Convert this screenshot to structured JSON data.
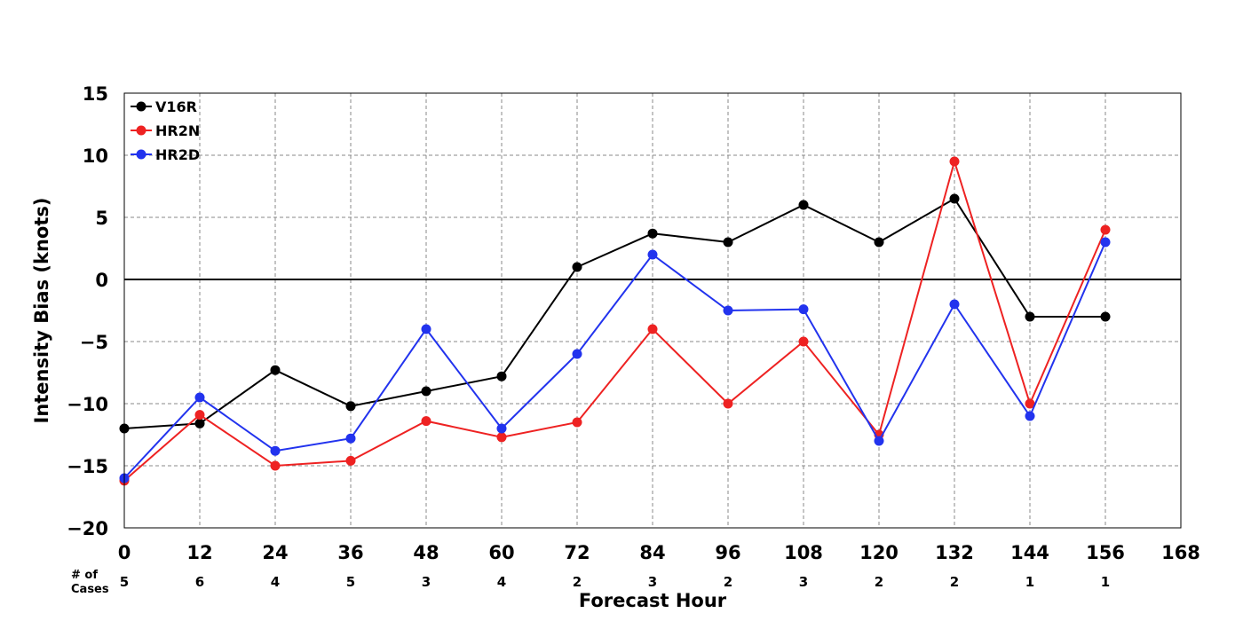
{
  "chart_data": {
    "type": "line",
    "title": "",
    "xlabel": "Forecast Hour",
    "ylabel": "Intensity Bias (knots)",
    "xlim": [
      0,
      168
    ],
    "ylim": [
      -20,
      15
    ],
    "x_ticks": [
      0,
      12,
      24,
      36,
      48,
      60,
      72,
      84,
      96,
      108,
      120,
      132,
      144,
      156,
      168
    ],
    "x_tick_labels": [
      "0",
      "12",
      "24",
      "36",
      "48",
      "60",
      "72",
      "84",
      "96",
      "108",
      "120",
      "132",
      "144",
      "156",
      "168"
    ],
    "y_ticks": [
      15,
      10,
      5,
      0,
      -5,
      -10,
      -15,
      -20
    ],
    "y_tick_labels": [
      "15",
      "10",
      "5",
      "0",
      "−5",
      "−10",
      "−15",
      "−20"
    ],
    "grid": true,
    "zero_line": true,
    "legend_position": "top-left",
    "x": [
      0,
      12,
      24,
      36,
      48,
      60,
      72,
      84,
      96,
      108,
      120,
      132,
      144,
      156
    ],
    "series": [
      {
        "name": "V16R",
        "color": "#000000",
        "values": [
          -12,
          -11.6,
          -7.3,
          -10.2,
          -9,
          -7.8,
          1,
          3.7,
          3,
          6,
          3,
          6.5,
          -3,
          -3
        ]
      },
      {
        "name": "HR2N",
        "color": "#ee2222",
        "values": [
          -16.2,
          -10.9,
          -15,
          -14.6,
          -11.4,
          -12.7,
          -11.5,
          -4,
          -10,
          -5,
          -12.5,
          9.5,
          -10,
          4
        ]
      },
      {
        "name": "HR2D",
        "color": "#2233ee",
        "values": [
          -16,
          -9.5,
          -13.8,
          -12.8,
          -4,
          -12,
          -6,
          2,
          -2.5,
          -2.4,
          -13,
          -2,
          -11,
          3
        ]
      }
    ],
    "cases": {
      "title_line1": "# of",
      "title_line2": "Cases",
      "counts": [
        "5",
        "6",
        "4",
        "5",
        "3",
        "4",
        "2",
        "3",
        "2",
        "3",
        "2",
        "2",
        "1",
        "1"
      ]
    }
  }
}
